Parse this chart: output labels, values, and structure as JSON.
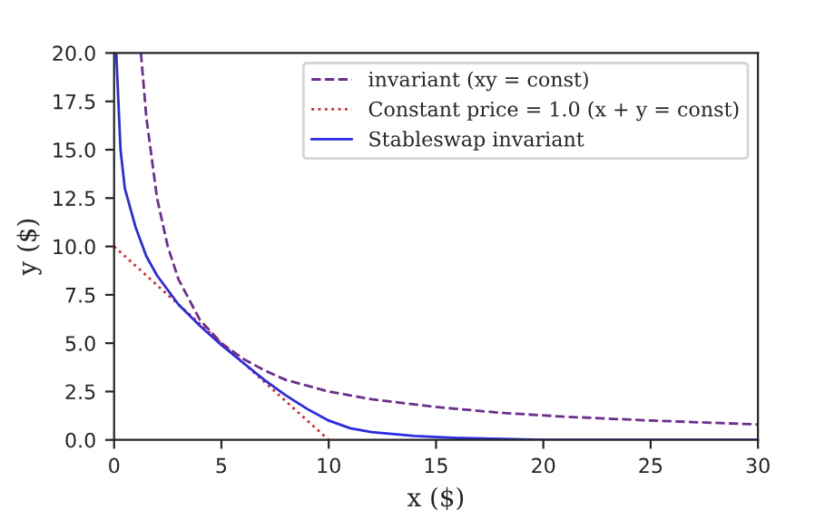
{
  "chart_data": {
    "type": "line",
    "xlabel": "x ($)",
    "ylabel": "y ($)",
    "xlim": [
      0,
      30
    ],
    "ylim": [
      0,
      20
    ],
    "xticks": [
      0,
      5,
      10,
      15,
      20,
      25,
      30
    ],
    "yticks": [
      {
        "value": 0,
        "label": "0.0"
      },
      {
        "value": 2.5,
        "label": "2.5"
      },
      {
        "value": 5,
        "label": "5.0"
      },
      {
        "value": 7.5,
        "label": "7.5"
      },
      {
        "value": 10,
        "label": "10.0"
      },
      {
        "value": 12.5,
        "label": "12.5"
      },
      {
        "value": 15,
        "label": "15.0"
      },
      {
        "value": 17.5,
        "label": "17.5"
      },
      {
        "value": 20,
        "label": "20.0"
      }
    ],
    "legend": "top right",
    "grid": false,
    "series": [
      {
        "name": "invariant (xy = const)",
        "color": "#6b2d8e",
        "line_style": "dashed",
        "x": [
          1.25,
          1.5,
          2,
          2.5,
          3,
          4,
          5,
          6,
          7,
          8,
          10,
          12,
          15,
          18,
          21,
          25,
          30
        ],
        "values": [
          20,
          16.7,
          12.5,
          10,
          8.3,
          6.2,
          5,
          4.2,
          3.6,
          3.1,
          2.5,
          2.1,
          1.7,
          1.4,
          1.2,
          1.0,
          0.8
        ]
      },
      {
        "name": "Constant price = 1.0 (x + y = const)",
        "color": "#d62728",
        "line_style": "dotted",
        "x": [
          0,
          10
        ],
        "values": [
          10,
          0
        ]
      },
      {
        "name": "Stableswap invariant",
        "color": "#2a2ae0",
        "line_style": "solid",
        "x": [
          0.1,
          0.3,
          0.5,
          1,
          1.5,
          2,
          3,
          4,
          5,
          6,
          7,
          8,
          9,
          10,
          11,
          12,
          14,
          16,
          20,
          25,
          30
        ],
        "values": [
          20,
          15,
          13,
          11,
          9.5,
          8.5,
          7,
          5.9,
          4.9,
          4,
          3.1,
          2.3,
          1.6,
          1.0,
          0.6,
          0.4,
          0.2,
          0.1,
          0.0,
          0,
          0
        ]
      }
    ]
  }
}
